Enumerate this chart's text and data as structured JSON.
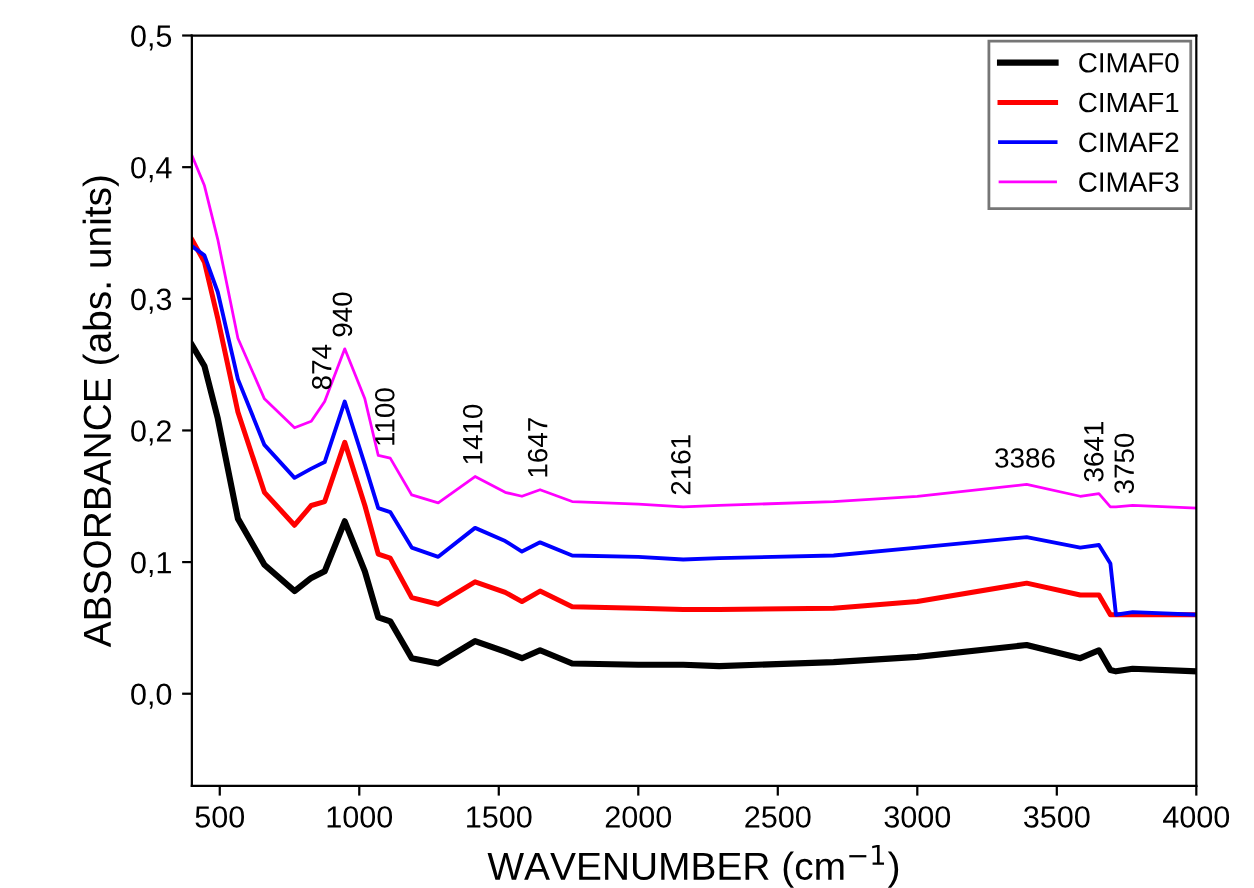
{
  "chart_data": {
    "type": "line",
    "xlabel": "WAVENUMBER (cm$^{−1}$)",
    "ylabel": "ABSORBANCE (abs. units)",
    "x": [
      400,
      445,
      493,
      565,
      660,
      768,
      828,
      876,
      948,
      1020,
      1068,
      1111,
      1188,
      1283,
      1415,
      1523,
      1583,
      1648,
      1763,
      2000,
      2161,
      2290,
      2700,
      3000,
      3392,
      3584,
      3651,
      3692,
      3712,
      3772,
      4000
    ],
    "series": [
      {
        "name": "CIMAF0",
        "color": "#000000",
        "values": [
          0.265,
          0.249,
          0.209,
          0.133,
          0.098,
          0.078,
          0.088,
          0.093,
          0.131,
          0.093,
          0.058,
          0.055,
          0.027,
          0.023,
          0.04,
          0.032,
          0.027,
          0.033,
          0.023,
          0.022,
          0.022,
          0.021,
          0.024,
          0.028,
          0.037,
          0.027,
          0.033,
          0.018,
          0.017,
          0.019,
          0.017
        ]
      },
      {
        "name": "CIMAF1",
        "color": "#ff0000",
        "values": [
          0.345,
          0.328,
          0.285,
          0.214,
          0.153,
          0.128,
          0.143,
          0.146,
          0.191,
          0.143,
          0.106,
          0.103,
          0.073,
          0.068,
          0.085,
          0.077,
          0.07,
          0.078,
          0.066,
          0.065,
          0.064,
          0.064,
          0.065,
          0.07,
          0.084,
          0.075,
          0.075,
          0.06,
          0.06,
          0.06,
          0.06
        ]
      },
      {
        "name": "CIMAF2",
        "color": "#0000ff",
        "values": [
          0.34,
          0.333,
          0.305,
          0.239,
          0.189,
          0.164,
          0.171,
          0.176,
          0.222,
          0.174,
          0.141,
          0.138,
          0.111,
          0.104,
          0.126,
          0.116,
          0.108,
          0.115,
          0.105,
          0.104,
          0.102,
          0.103,
          0.105,
          0.111,
          0.119,
          0.111,
          0.113,
          0.099,
          0.06,
          0.062,
          0.06
        ]
      },
      {
        "name": "CIMAF3",
        "color": "#ff00ff",
        "values": [
          0.409,
          0.386,
          0.345,
          0.27,
          0.224,
          0.202,
          0.207,
          0.222,
          0.262,
          0.224,
          0.181,
          0.179,
          0.151,
          0.145,
          0.165,
          0.153,
          0.15,
          0.155,
          0.146,
          0.144,
          0.142,
          0.143,
          0.146,
          0.15,
          0.159,
          0.15,
          0.152,
          0.142,
          0.142,
          0.143,
          0.141
        ]
      }
    ],
    "annotations": [
      {
        "text": "874",
        "x": 874,
        "y": 0.222
      },
      {
        "text": "940",
        "x": 948,
        "y": 0.262
      },
      {
        "text": "1100",
        "x": 1100,
        "y": 0.179
      },
      {
        "text": "1410",
        "x": 1415,
        "y": 0.165
      },
      {
        "text": "1647",
        "x": 1648,
        "y": 0.155
      },
      {
        "text": "2161",
        "x": 2161,
        "y": 0.142
      },
      {
        "text": "3386",
        "x": 3386,
        "y": 0.159
      },
      {
        "text": "3641",
        "x": 3641,
        "y": 0.152
      },
      {
        "text": "3750",
        "x": 3750,
        "y": 0.143
      }
    ],
    "xlim": [
      400,
      4000
    ],
    "xticks": [
      500,
      1000,
      1500,
      2000,
      2500,
      3000,
      3500,
      4000
    ],
    "ylim": [
      -0.07,
      0.5
    ],
    "yticks": [
      {
        "value": 0,
        "label": "0,0"
      },
      {
        "value": 0.1,
        "label": "0,1"
      },
      {
        "value": 0.2,
        "label": "0,2"
      },
      {
        "value": 0.3,
        "label": "0,3"
      },
      {
        "value": 0.4,
        "label": "0,4"
      },
      {
        "value": 0.5,
        "label": "0,5"
      }
    ],
    "grid": false,
    "legend": "top right",
    "marker": "none",
    "line_style": "solid"
  }
}
